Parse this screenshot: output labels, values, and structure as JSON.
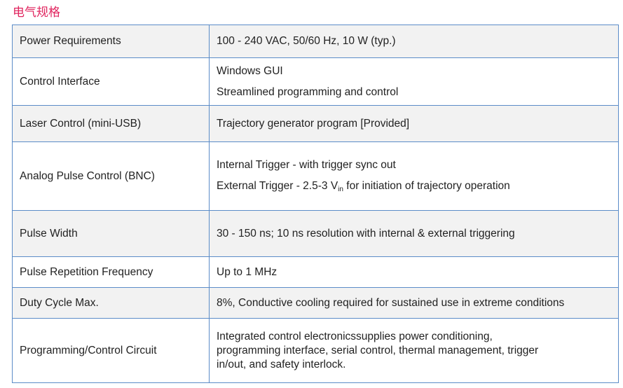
{
  "title": "电气规格",
  "rows": [
    {
      "label": "Power Requirements",
      "value": [
        "100 - 240 VAC, 50/60 Hz, 10 W (typ.)"
      ]
    },
    {
      "label": "Control Interface",
      "value": [
        "Windows GUI",
        "Streamlined programming and control"
      ]
    },
    {
      "label": "Laser Control (mini-USB)",
      "value": [
        "Trajectory generator program  [Provided]"
      ]
    },
    {
      "label": "Analog  Pulse Control (BNC)",
      "value": [
        "Internal Trigger - with trigger sync out",
        {
          "before": "External Trigger - 2.5-3 V",
          "sub": "in",
          "after": " for initiation of trajectory operation"
        }
      ]
    },
    {
      "label": "Pulse Width",
      "value": [
        "30 - 150 ns; 10 ns resolution with internal & external triggering"
      ]
    },
    {
      "label": "Pulse  Repetition  Frequency",
      "value": [
        "Up to 1 MHz"
      ]
    },
    {
      "label": "Duty Cycle Max.",
      "value": [
        "8%, Conductive cooling required for sustained use in extreme conditions"
      ]
    },
    {
      "label": "Programming/Control Circuit",
      "value": [
        "Integrated control electronicssupplies power conditioning,",
        "programming interface, serial control, thermal management, trigger",
        "in/out, and safety interlock."
      ]
    }
  ]
}
